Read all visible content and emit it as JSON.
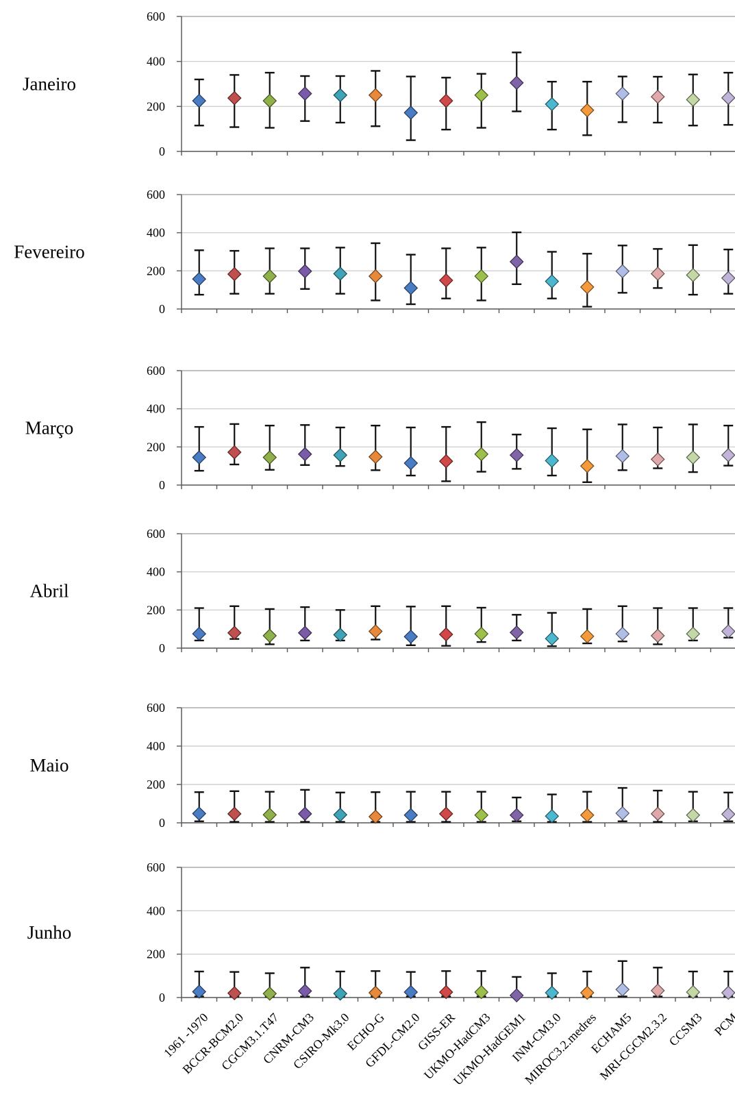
{
  "chart_data": {
    "type": "scatter",
    "title": "",
    "xlabel": "",
    "ylabel": "",
    "ylim": [
      0,
      600
    ],
    "yticks": [
      0,
      200,
      400,
      600
    ],
    "grid": true,
    "legend": "none",
    "marker": "diamond",
    "error_bars": true,
    "categories": [
      "1961 -1970",
      "BCCR-BCM2.0",
      "CGCM3.1.T47",
      "CNRM-CM3",
      "CSIRO-Mk3.0",
      "ECHO-G",
      "GFDL-CM2.0",
      "GISS-ER",
      "UKMO-HadCM3",
      "UKMO-HadGEM1",
      "INM-CM3.0",
      "MIROC3.2.medres",
      "ECHAM5",
      "MRI-CGCM2.3.2",
      "CCSM3",
      "PCM"
    ],
    "colors": [
      "#4a7cc4",
      "#c0504d",
      "#8fb04a",
      "#7a5ba8",
      "#3fa3b8",
      "#e8883a",
      "#4a7cc4",
      "#d04848",
      "#9cc04a",
      "#8064a8",
      "#4bb8d0",
      "#f49a3c",
      "#b0bde6",
      "#e0a8a8",
      "#c4d8a6",
      "#c0b4d8"
    ],
    "panels": [
      {
        "month": "Janeiro",
        "mean": [
          225,
          237,
          225,
          257,
          250,
          250,
          172,
          225,
          250,
          305,
          210,
          183,
          257,
          243,
          230,
          238
        ],
        "upper": [
          320,
          340,
          350,
          335,
          335,
          358,
          333,
          328,
          345,
          440,
          310,
          310,
          333,
          332,
          342,
          350
        ],
        "lower": [
          115,
          108,
          105,
          135,
          128,
          112,
          50,
          97,
          105,
          178,
          97,
          72,
          130,
          128,
          115,
          118
        ]
      },
      {
        "month": "Fevereiro",
        "mean": [
          157,
          183,
          172,
          198,
          185,
          172,
          110,
          150,
          172,
          248,
          145,
          115,
          198,
          185,
          178,
          162
        ],
        "upper": [
          308,
          305,
          318,
          318,
          322,
          345,
          285,
          318,
          322,
          402,
          300,
          290,
          333,
          315,
          335,
          312
        ],
        "lower": [
          75,
          80,
          80,
          105,
          80,
          45,
          25,
          55,
          45,
          130,
          55,
          12,
          85,
          110,
          75,
          80
        ]
      },
      {
        "month": "Março",
        "mean": [
          145,
          172,
          145,
          162,
          157,
          148,
          115,
          125,
          162,
          157,
          128,
          100,
          152,
          135,
          145,
          157
        ],
        "upper": [
          305,
          320,
          312,
          315,
          302,
          312,
          302,
          305,
          330,
          265,
          298,
          292,
          318,
          302,
          318,
          312
        ],
        "lower": [
          75,
          108,
          80,
          105,
          100,
          78,
          50,
          20,
          70,
          85,
          50,
          15,
          78,
          88,
          68,
          102
        ]
      },
      {
        "month": "Abril",
        "mean": [
          75,
          80,
          65,
          80,
          70,
          88,
          60,
          72,
          75,
          82,
          50,
          62,
          75,
          65,
          75,
          88
        ],
        "upper": [
          210,
          220,
          205,
          215,
          200,
          220,
          218,
          220,
          212,
          175,
          185,
          205,
          220,
          210,
          210,
          210
        ],
        "lower": [
          40,
          48,
          20,
          40,
          40,
          45,
          15,
          12,
          32,
          40,
          10,
          25,
          35,
          20,
          40,
          55
        ]
      },
      {
        "month": "Maio",
        "mean": [
          48,
          47,
          42,
          47,
          42,
          32,
          40,
          47,
          40,
          40,
          35,
          40,
          50,
          47,
          40,
          45
        ],
        "upper": [
          160,
          165,
          162,
          172,
          158,
          160,
          162,
          162,
          162,
          132,
          148,
          162,
          182,
          168,
          162,
          158
        ],
        "lower": [
          8,
          5,
          5,
          5,
          5,
          5,
          5,
          5,
          5,
          8,
          5,
          5,
          8,
          5,
          8,
          8
        ]
      },
      {
        "month": "Junho",
        "mean": [
          27,
          20,
          18,
          30,
          18,
          22,
          25,
          25,
          25,
          10,
          22,
          22,
          37,
          32,
          25,
          22
        ],
        "upper": [
          120,
          118,
          112,
          138,
          120,
          122,
          118,
          122,
          122,
          95,
          112,
          120,
          168,
          138,
          120,
          120
        ],
        "lower": [
          5,
          5,
          5,
          5,
          5,
          5,
          5,
          5,
          5,
          3,
          5,
          5,
          5,
          5,
          5,
          5
        ]
      }
    ]
  }
}
